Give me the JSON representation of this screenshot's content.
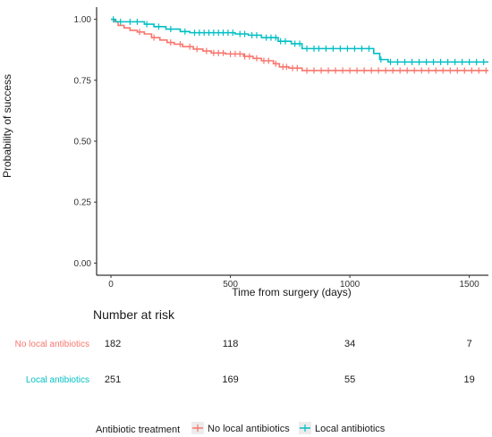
{
  "chart_data": {
    "type": "line",
    "subtype": "kaplan-meier-step",
    "xlabel": "Time from surgery (days)",
    "ylabel": "Probability of success",
    "xlim": [
      -60,
      1580
    ],
    "ylim": [
      -0.05,
      1.05
    ],
    "x_ticks": [
      0,
      500,
      1000,
      1500
    ],
    "y_ticks": [
      0.0,
      0.25,
      0.5,
      0.75,
      1.0
    ],
    "y_tick_labels": [
      "0.00",
      "0.25",
      "0.50",
      "0.75",
      "1.00"
    ],
    "grid": false,
    "series": [
      {
        "name": "No local antibiotics",
        "color": "#F8766D",
        "steps": [
          [
            0,
            1.0
          ],
          [
            15,
            0.99
          ],
          [
            30,
            0.975
          ],
          [
            55,
            0.965
          ],
          [
            80,
            0.955
          ],
          [
            110,
            0.948
          ],
          [
            140,
            0.94
          ],
          [
            170,
            0.925
          ],
          [
            205,
            0.915
          ],
          [
            235,
            0.905
          ],
          [
            265,
            0.898
          ],
          [
            300,
            0.888
          ],
          [
            345,
            0.878
          ],
          [
            385,
            0.87
          ],
          [
            420,
            0.862
          ],
          [
            480,
            0.858
          ],
          [
            555,
            0.848
          ],
          [
            595,
            0.84
          ],
          [
            630,
            0.83
          ],
          [
            680,
            0.818
          ],
          [
            705,
            0.805
          ],
          [
            745,
            0.8
          ],
          [
            800,
            0.79
          ],
          [
            1580,
            0.79
          ]
        ],
        "censor_x": [
          120,
          180,
          250,
          290,
          330,
          360,
          400,
          430,
          450,
          470,
          500,
          520,
          540,
          560,
          580,
          610,
          640,
          660,
          690,
          720,
          735,
          760,
          780,
          820,
          850,
          880,
          910,
          940,
          970,
          1000,
          1030,
          1060,
          1090,
          1120,
          1150,
          1180,
          1210,
          1240,
          1270,
          1300,
          1330,
          1360,
          1390,
          1420,
          1450,
          1480,
          1510,
          1540,
          1570
        ]
      },
      {
        "name": "Local antibiotics",
        "color": "#00BFC4",
        "steps": [
          [
            0,
            1.0
          ],
          [
            20,
            0.99
          ],
          [
            140,
            0.98
          ],
          [
            180,
            0.97
          ],
          [
            230,
            0.96
          ],
          [
            290,
            0.95
          ],
          [
            330,
            0.945
          ],
          [
            520,
            0.94
          ],
          [
            575,
            0.935
          ],
          [
            630,
            0.925
          ],
          [
            700,
            0.91
          ],
          [
            755,
            0.9
          ],
          [
            800,
            0.88
          ],
          [
            1100,
            0.86
          ],
          [
            1125,
            0.835
          ],
          [
            1160,
            0.825
          ],
          [
            1580,
            0.825
          ]
        ],
        "censor_x": [
          10,
          40,
          80,
          110,
          150,
          200,
          250,
          310,
          350,
          370,
          390,
          410,
          430,
          450,
          470,
          490,
          510,
          540,
          560,
          590,
          610,
          650,
          670,
          690,
          710,
          730,
          770,
          790,
          820,
          850,
          870,
          900,
          930,
          960,
          990,
          1020,
          1050,
          1080,
          1130,
          1170,
          1200,
          1230,
          1260,
          1290,
          1320,
          1350,
          1380,
          1410,
          1440,
          1470,
          1500,
          1530,
          1560
        ]
      }
    ],
    "risk_table": {
      "title": "Number at risk",
      "times": [
        0,
        500,
        1000,
        1500
      ],
      "rows": [
        {
          "label": "No local antibiotics",
          "color": "#F8766D",
          "values": [
            "182",
            "118",
            "34",
            "7"
          ]
        },
        {
          "label": "Local antibiotics",
          "color": "#00BFC4",
          "values": [
            "251",
            "169",
            "55",
            "19"
          ]
        }
      ]
    },
    "legend": {
      "title": "Antibiotic treatment",
      "placement": "bottom",
      "entries": [
        "No local antibiotics",
        "Local antibiotics"
      ]
    }
  }
}
